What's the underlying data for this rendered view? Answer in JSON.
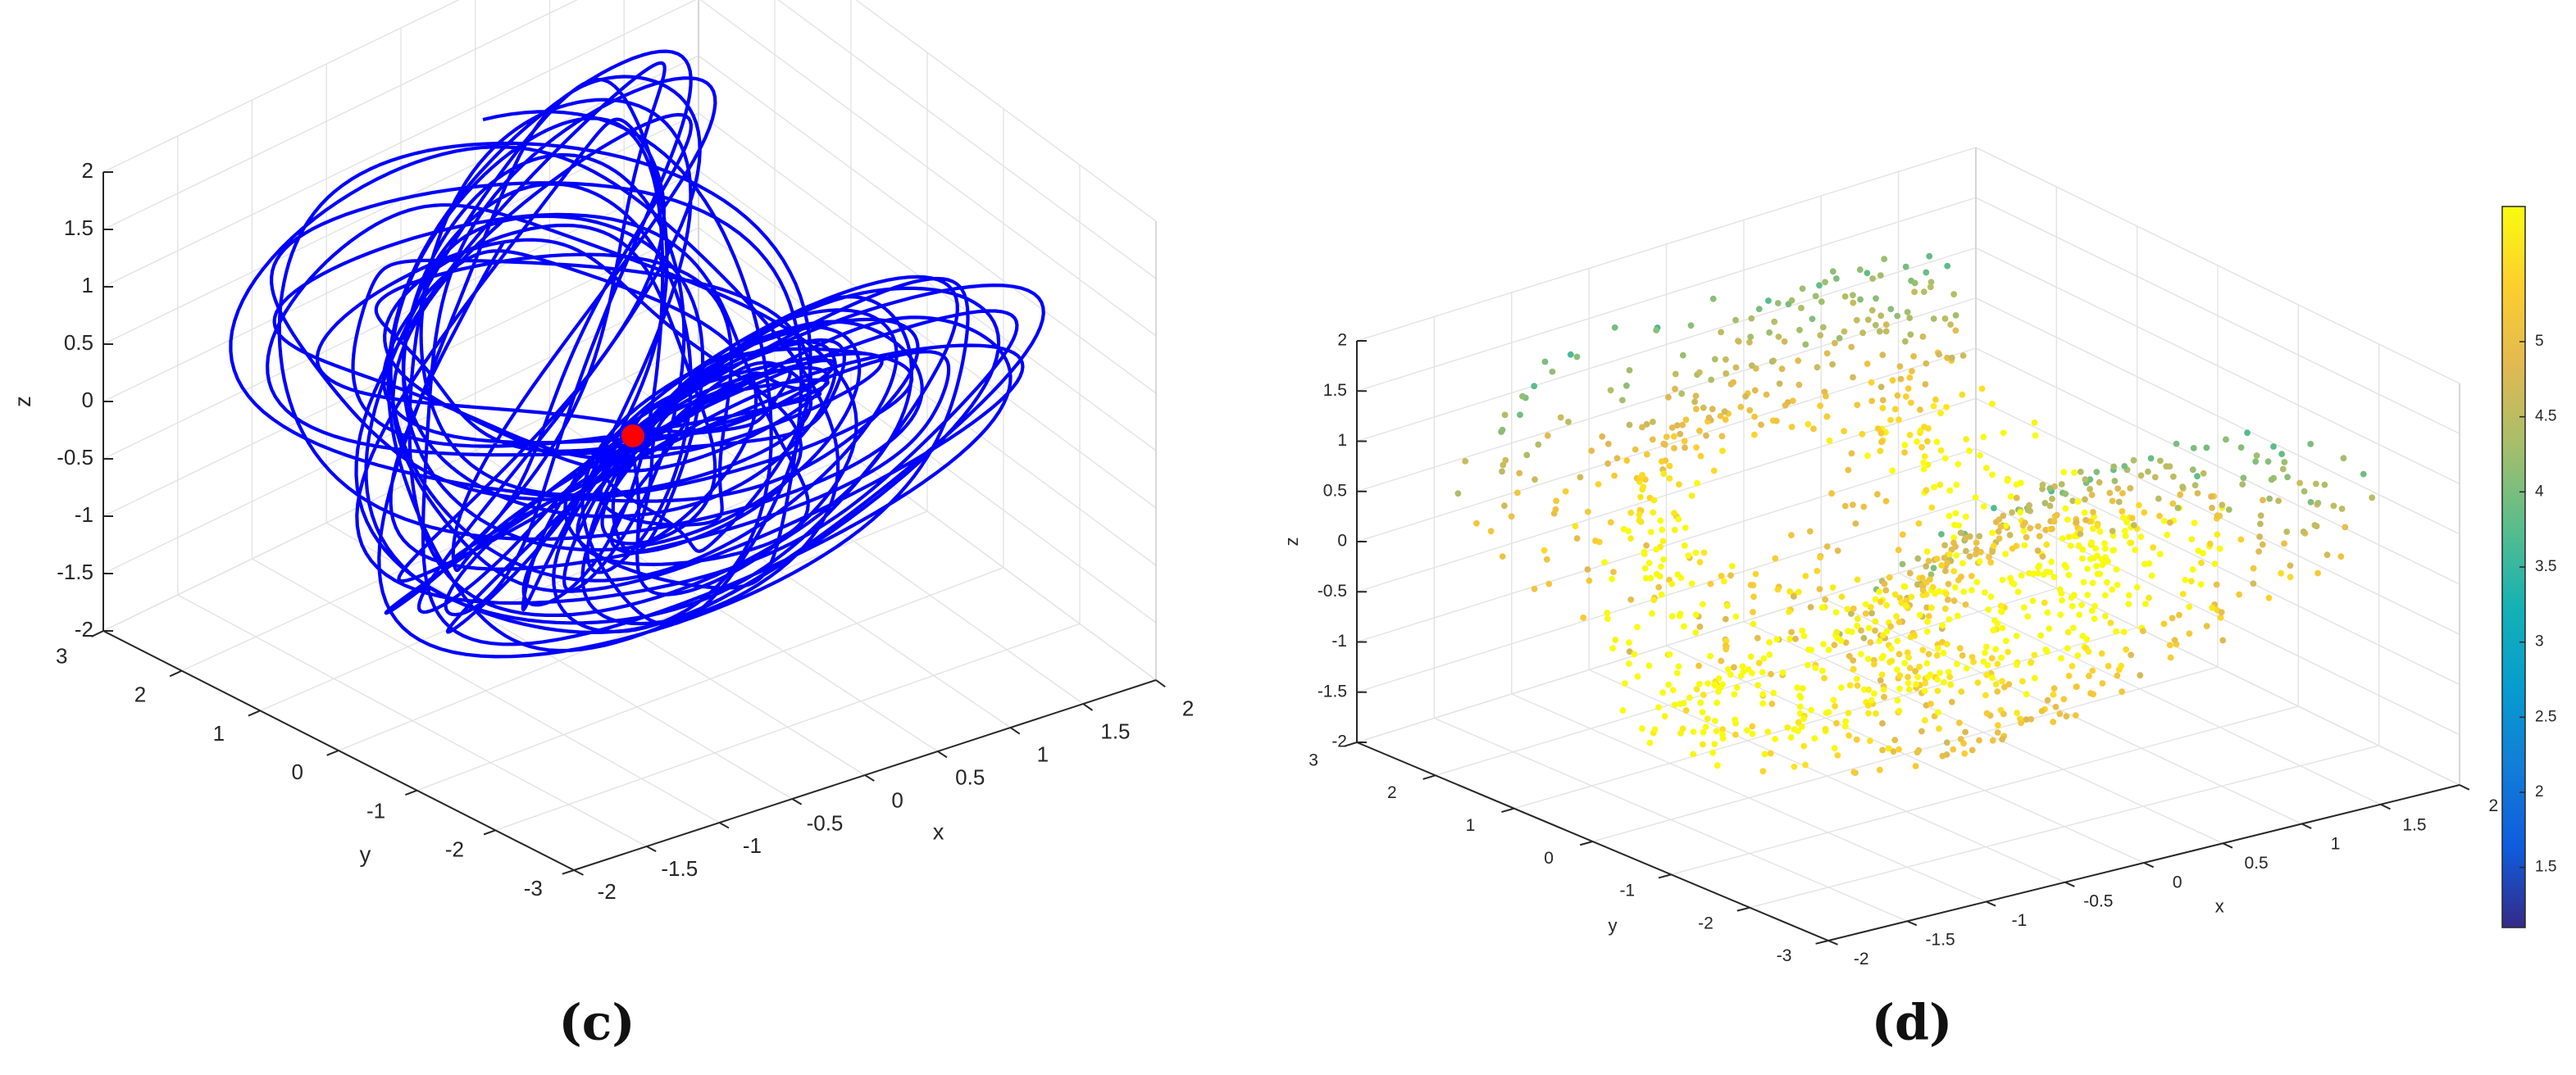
{
  "chart_data": [
    {
      "type": "line3d",
      "caption": "(c)",
      "xlabel": "x",
      "ylabel": "y",
      "zlabel": "z",
      "xlim": [
        -2,
        2
      ],
      "ylim": [
        -3,
        3
      ],
      "zlim": [
        -2,
        2
      ],
      "xticks": [
        "-2",
        "-1.5",
        "-1",
        "-0.5",
        "0",
        "0.5",
        "1",
        "1.5",
        "2"
      ],
      "yticks": [
        "-3",
        "-2",
        "-1",
        "0",
        "1",
        "2",
        "3"
      ],
      "zticks": [
        "-2",
        "-1.5",
        "-1",
        "-0.5",
        "0",
        "0.5",
        "1",
        "1.5",
        "2"
      ],
      "grid": true,
      "line_color": "#0000ff",
      "marker": {
        "x": 0.0,
        "y": 0.0,
        "z": -0.3,
        "color": "#ff0000"
      }
    },
    {
      "type": "scatter3d",
      "caption": "(d)",
      "xlabel": "x",
      "ylabel": "y",
      "zlabel": "z",
      "xlim": [
        -2,
        2
      ],
      "ylim": [
        -3,
        3
      ],
      "zlim": [
        -2,
        2
      ],
      "xticks": [
        "-2",
        "-1.5",
        "-1",
        "-0.5",
        "0",
        "0.5",
        "1",
        "1.5",
        "2"
      ],
      "yticks": [
        "-3",
        "-2",
        "-1",
        "0",
        "1",
        "2",
        "3"
      ],
      "zticks": [
        "-2",
        "-1.5",
        "-1",
        "-0.5",
        "0",
        "0.5",
        "1",
        "1.5",
        "2"
      ],
      "grid": true,
      "colorbar": {
        "min": 1.1,
        "max": 5.9,
        "ticks": [
          "1.5",
          "2",
          "2.5",
          "3",
          "3.5",
          "4",
          "4.5",
          "5"
        ],
        "colormap": "parula"
      }
    }
  ]
}
